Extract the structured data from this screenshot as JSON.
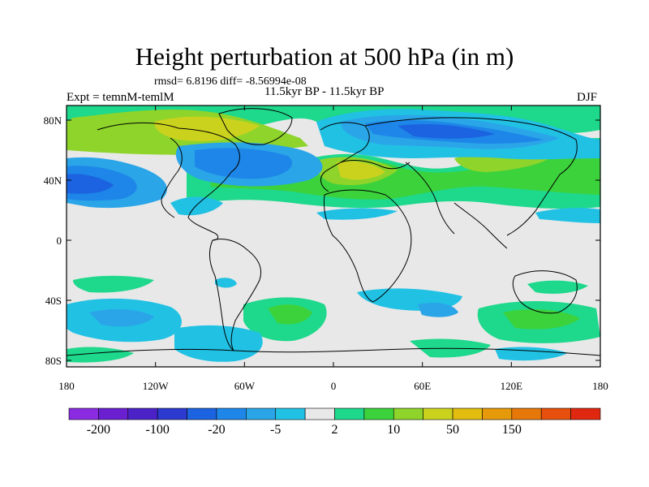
{
  "title": "Height perturbation at 500 hPa (in m)",
  "stats": "rmsd= 6.8196 diff= -8.56994e-08",
  "experiment": "Expt = temnM-temlM",
  "period": "11.5kyr BP - 11.5kyr BP",
  "season": "DJF",
  "lat_ticks": [
    "80N",
    "40N",
    "0",
    "40S",
    "80S"
  ],
  "lon_ticks": [
    "180",
    "120W",
    "60W",
    "0",
    "60E",
    "120E",
    "180"
  ],
  "colorbar": {
    "colors": [
      "#8a2be2",
      "#6a1fd0",
      "#4b22c8",
      "#2c3ad0",
      "#1b63e0",
      "#1e86e8",
      "#2aa5e8",
      "#21c1e4",
      "#e8e8e8",
      "#1ed88c",
      "#3cd23c",
      "#8ed42a",
      "#cbd21e",
      "#e2bd10",
      "#e69a0a",
      "#e6780a",
      "#e6500c",
      "#e02810"
    ],
    "labels": [
      "-200",
      "-100",
      "-20",
      "-5",
      "2",
      "10",
      "50",
      "150"
    ]
  }
}
